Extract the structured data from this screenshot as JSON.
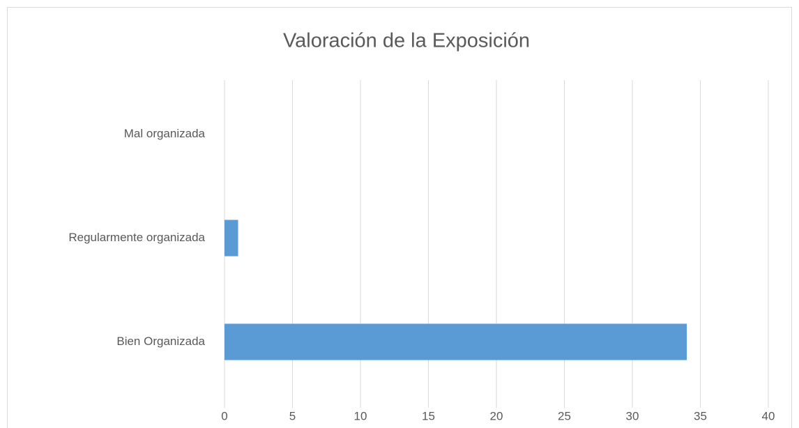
{
  "chart_data": {
    "type": "bar",
    "orientation": "horizontal",
    "title": "Valoración de la Exposición",
    "categories": [
      "Mal organizada",
      "Regularmente organizada",
      "Bien Organizada"
    ],
    "values": [
      0,
      1,
      34
    ],
    "color": "#5b9bd5",
    "xlim": [
      0,
      40
    ],
    "xticks": [
      0,
      5,
      10,
      15,
      20,
      25,
      30,
      35,
      40
    ],
    "grid": true
  }
}
